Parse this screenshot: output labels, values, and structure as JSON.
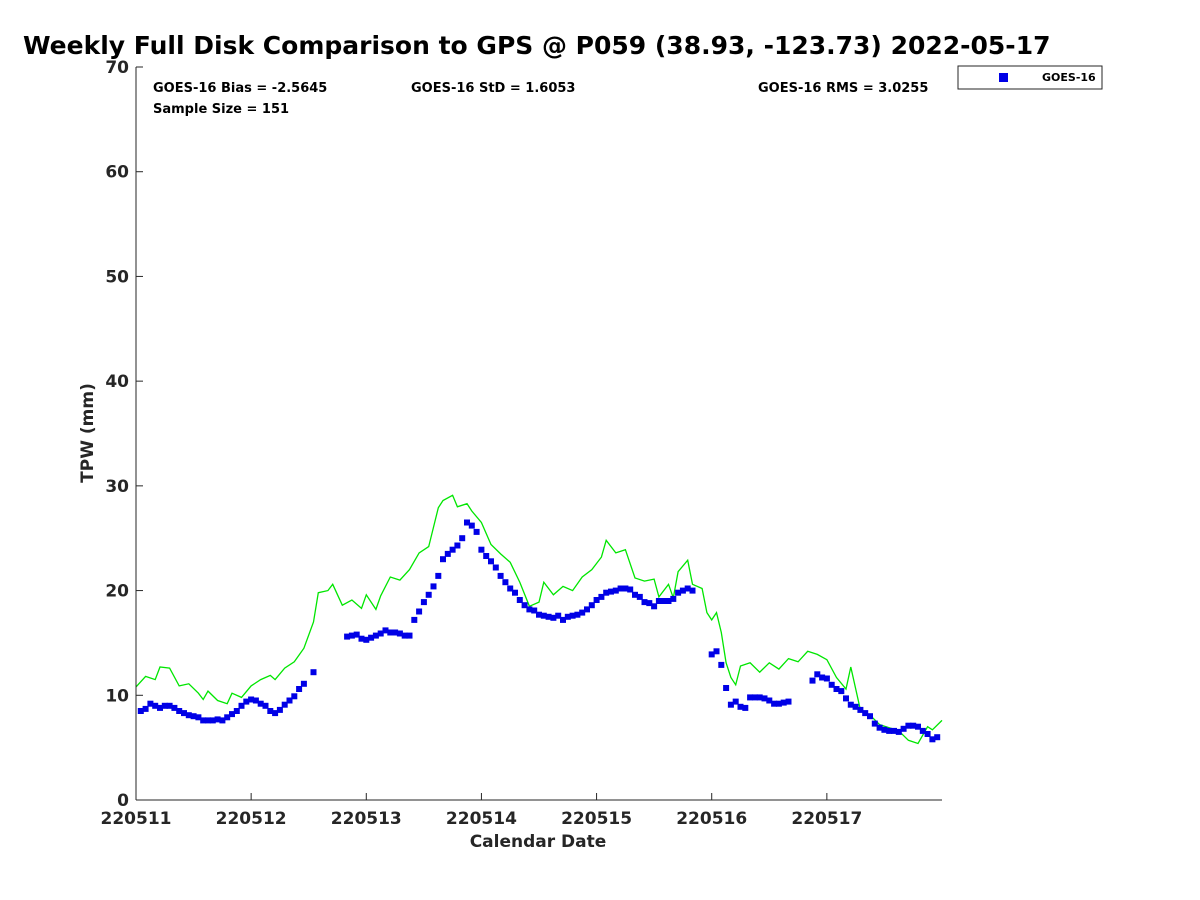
{
  "chart_data": {
    "type": "scatter",
    "title": "Weekly Full Disk Comparison to GPS @ P059 (38.93, -123.73) 2022-05-17",
    "xlabel": "Calendar Date",
    "ylabel": "TPW (mm)",
    "ylim": [
      0,
      70
    ],
    "xlim": [
      "2022-05-11 00:00",
      "2022-05-18 00:00"
    ],
    "x_ticks": [
      "2022-05-11",
      "2022-05-12",
      "2022-05-13",
      "2022-05-14",
      "2022-05-15",
      "2022-05-16",
      "2022-05-17"
    ],
    "x_tick_labels": [
      "220511",
      "220512",
      "220513",
      "220514",
      "220515",
      "220516",
      "220517"
    ],
    "y_ticks": [
      0,
      10,
      20,
      30,
      40,
      50,
      60,
      70
    ],
    "grid": false,
    "legend": {
      "position": "top-right",
      "entries": [
        "GOES-16"
      ]
    },
    "stats": {
      "bias": "GOES-16 Bias = -2.5645",
      "std": "GOES-16 StD = 1.6053",
      "rms": "GOES-16 RMS = 3.0255",
      "sample_size": "Sample Size = 151"
    },
    "series": [
      {
        "name": "GOES-16",
        "marker": "square",
        "color": "#0000e6",
        "points": [
          [
            "2022-05-11 01:00",
            8.5
          ],
          [
            "2022-05-11 02:00",
            8.7
          ],
          [
            "2022-05-11 03:00",
            9.2
          ],
          [
            "2022-05-11 04:00",
            9.0
          ],
          [
            "2022-05-11 05:00",
            8.8
          ],
          [
            "2022-05-11 06:00",
            9.0
          ],
          [
            "2022-05-11 07:00",
            9.0
          ],
          [
            "2022-05-11 08:00",
            8.8
          ],
          [
            "2022-05-11 09:00",
            8.5
          ],
          [
            "2022-05-11 10:00",
            8.3
          ],
          [
            "2022-05-11 11:00",
            8.1
          ],
          [
            "2022-05-11 12:00",
            8.0
          ],
          [
            "2022-05-11 13:00",
            7.9
          ],
          [
            "2022-05-11 14:00",
            7.6
          ],
          [
            "2022-05-11 15:00",
            7.6
          ],
          [
            "2022-05-11 16:00",
            7.6
          ],
          [
            "2022-05-11 17:00",
            7.7
          ],
          [
            "2022-05-11 18:00",
            7.6
          ],
          [
            "2022-05-11 19:00",
            7.9
          ],
          [
            "2022-05-11 20:00",
            8.2
          ],
          [
            "2022-05-11 21:00",
            8.5
          ],
          [
            "2022-05-11 22:00",
            9.0
          ],
          [
            "2022-05-11 23:00",
            9.4
          ],
          [
            "2022-05-12 00:00",
            9.6
          ],
          [
            "2022-05-12 01:00",
            9.5
          ],
          [
            "2022-05-12 02:00",
            9.2
          ],
          [
            "2022-05-12 03:00",
            9.0
          ],
          [
            "2022-05-12 04:00",
            8.5
          ],
          [
            "2022-05-12 05:00",
            8.3
          ],
          [
            "2022-05-12 06:00",
            8.6
          ],
          [
            "2022-05-12 07:00",
            9.1
          ],
          [
            "2022-05-12 08:00",
            9.5
          ],
          [
            "2022-05-12 09:00",
            9.9
          ],
          [
            "2022-05-12 10:00",
            10.6
          ],
          [
            "2022-05-12 11:00",
            11.1
          ],
          [
            "2022-05-12 13:00",
            12.2
          ],
          [
            "2022-05-12 20:00",
            15.6
          ],
          [
            "2022-05-12 21:00",
            15.7
          ],
          [
            "2022-05-12 22:00",
            15.8
          ],
          [
            "2022-05-12 23:00",
            15.4
          ],
          [
            "2022-05-13 00:00",
            15.3
          ],
          [
            "2022-05-13 01:00",
            15.5
          ],
          [
            "2022-05-13 02:00",
            15.7
          ],
          [
            "2022-05-13 03:00",
            15.9
          ],
          [
            "2022-05-13 04:00",
            16.2
          ],
          [
            "2022-05-13 05:00",
            16.0
          ],
          [
            "2022-05-13 06:00",
            16.0
          ],
          [
            "2022-05-13 07:00",
            15.9
          ],
          [
            "2022-05-13 08:00",
            15.7
          ],
          [
            "2022-05-13 09:00",
            15.7
          ],
          [
            "2022-05-13 10:00",
            17.2
          ],
          [
            "2022-05-13 11:00",
            18.0
          ],
          [
            "2022-05-13 12:00",
            18.9
          ],
          [
            "2022-05-13 13:00",
            19.6
          ],
          [
            "2022-05-13 14:00",
            20.4
          ],
          [
            "2022-05-13 15:00",
            21.4
          ],
          [
            "2022-05-13 16:00",
            23.0
          ],
          [
            "2022-05-13 17:00",
            23.5
          ],
          [
            "2022-05-13 18:00",
            23.9
          ],
          [
            "2022-05-13 19:00",
            24.3
          ],
          [
            "2022-05-13 20:00",
            25.0
          ],
          [
            "2022-05-13 21:00",
            26.5
          ],
          [
            "2022-05-13 22:00",
            26.2
          ],
          [
            "2022-05-13 23:00",
            25.6
          ],
          [
            "2022-05-14 00:00",
            23.9
          ],
          [
            "2022-05-14 01:00",
            23.3
          ],
          [
            "2022-05-14 02:00",
            22.8
          ],
          [
            "2022-05-14 03:00",
            22.2
          ],
          [
            "2022-05-14 04:00",
            21.4
          ],
          [
            "2022-05-14 05:00",
            20.8
          ],
          [
            "2022-05-14 06:00",
            20.2
          ],
          [
            "2022-05-14 07:00",
            19.8
          ],
          [
            "2022-05-14 08:00",
            19.1
          ],
          [
            "2022-05-14 09:00",
            18.6
          ],
          [
            "2022-05-14 10:00",
            18.2
          ],
          [
            "2022-05-14 11:00",
            18.1
          ],
          [
            "2022-05-14 12:00",
            17.7
          ],
          [
            "2022-05-14 13:00",
            17.6
          ],
          [
            "2022-05-14 14:00",
            17.5
          ],
          [
            "2022-05-14 15:00",
            17.4
          ],
          [
            "2022-05-14 16:00",
            17.6
          ],
          [
            "2022-05-14 17:00",
            17.2
          ],
          [
            "2022-05-14 18:00",
            17.5
          ],
          [
            "2022-05-14 19:00",
            17.6
          ],
          [
            "2022-05-14 20:00",
            17.7
          ],
          [
            "2022-05-14 21:00",
            17.9
          ],
          [
            "2022-05-14 22:00",
            18.2
          ],
          [
            "2022-05-14 23:00",
            18.6
          ],
          [
            "2022-05-15 00:00",
            19.1
          ],
          [
            "2022-05-15 01:00",
            19.4
          ],
          [
            "2022-05-15 02:00",
            19.8
          ],
          [
            "2022-05-15 03:00",
            19.9
          ],
          [
            "2022-05-15 04:00",
            20.0
          ],
          [
            "2022-05-15 05:00",
            20.2
          ],
          [
            "2022-05-15 06:00",
            20.2
          ],
          [
            "2022-05-15 07:00",
            20.1
          ],
          [
            "2022-05-15 08:00",
            19.6
          ],
          [
            "2022-05-15 09:00",
            19.4
          ],
          [
            "2022-05-15 10:00",
            18.9
          ],
          [
            "2022-05-15 11:00",
            18.8
          ],
          [
            "2022-05-15 12:00",
            18.5
          ],
          [
            "2022-05-15 13:00",
            19.0
          ],
          [
            "2022-05-15 14:00",
            19.0
          ],
          [
            "2022-05-15 15:00",
            19.0
          ],
          [
            "2022-05-15 16:00",
            19.2
          ],
          [
            "2022-05-15 17:00",
            19.8
          ],
          [
            "2022-05-15 18:00",
            20.0
          ],
          [
            "2022-05-15 19:00",
            20.2
          ],
          [
            "2022-05-15 20:00",
            20.0
          ],
          [
            "2022-05-16 00:00",
            13.9
          ],
          [
            "2022-05-16 01:00",
            14.2
          ],
          [
            "2022-05-16 02:00",
            12.9
          ],
          [
            "2022-05-16 03:00",
            10.7
          ],
          [
            "2022-05-16 04:00",
            9.1
          ],
          [
            "2022-05-16 05:00",
            9.4
          ],
          [
            "2022-05-16 06:00",
            8.9
          ],
          [
            "2022-05-16 07:00",
            8.8
          ],
          [
            "2022-05-16 08:00",
            9.8
          ],
          [
            "2022-05-16 09:00",
            9.8
          ],
          [
            "2022-05-16 10:00",
            9.8
          ],
          [
            "2022-05-16 11:00",
            9.7
          ],
          [
            "2022-05-16 12:00",
            9.5
          ],
          [
            "2022-05-16 13:00",
            9.2
          ],
          [
            "2022-05-16 14:00",
            9.2
          ],
          [
            "2022-05-16 15:00",
            9.3
          ],
          [
            "2022-05-16 16:00",
            9.4
          ],
          [
            "2022-05-16 21:00",
            11.4
          ],
          [
            "2022-05-16 22:00",
            12.0
          ],
          [
            "2022-05-16 23:00",
            11.7
          ],
          [
            "2022-05-17 00:00",
            11.6
          ],
          [
            "2022-05-17 01:00",
            11.0
          ],
          [
            "2022-05-17 02:00",
            10.6
          ],
          [
            "2022-05-17 03:00",
            10.4
          ],
          [
            "2022-05-17 04:00",
            9.7
          ],
          [
            "2022-05-17 05:00",
            9.1
          ],
          [
            "2022-05-17 06:00",
            8.9
          ],
          [
            "2022-05-17 07:00",
            8.6
          ],
          [
            "2022-05-17 08:00",
            8.3
          ],
          [
            "2022-05-17 09:00",
            8.0
          ],
          [
            "2022-05-17 10:00",
            7.3
          ],
          [
            "2022-05-17 11:00",
            6.9
          ],
          [
            "2022-05-17 12:00",
            6.7
          ],
          [
            "2022-05-17 13:00",
            6.6
          ],
          [
            "2022-05-17 14:00",
            6.6
          ],
          [
            "2022-05-17 15:00",
            6.5
          ],
          [
            "2022-05-17 16:00",
            6.8
          ],
          [
            "2022-05-17 17:00",
            7.1
          ],
          [
            "2022-05-17 18:00",
            7.1
          ],
          [
            "2022-05-17 19:00",
            7.0
          ],
          [
            "2022-05-17 20:00",
            6.6
          ],
          [
            "2022-05-17 21:00",
            6.3
          ],
          [
            "2022-05-17 22:00",
            5.8
          ],
          [
            "2022-05-17 23:00",
            6.0
          ]
        ]
      },
      {
        "color": "#00e600",
        "line": true,
        "points": [
          [
            "2022-05-11 00:00",
            10.8
          ],
          [
            "2022-05-11 02:00",
            11.8
          ],
          [
            "2022-05-11 04:00",
            11.5
          ],
          [
            "2022-05-11 05:00",
            12.7
          ],
          [
            "2022-05-11 07:00",
            12.6
          ],
          [
            "2022-05-11 09:00",
            10.9
          ],
          [
            "2022-05-11 11:00",
            11.1
          ],
          [
            "2022-05-11 13:00",
            10.2
          ],
          [
            "2022-05-11 14:00",
            9.6
          ],
          [
            "2022-05-11 15:00",
            10.4
          ],
          [
            "2022-05-11 17:00",
            9.5
          ],
          [
            "2022-05-11 19:00",
            9.2
          ],
          [
            "2022-05-11 20:00",
            10.2
          ],
          [
            "2022-05-11 22:00",
            9.8
          ],
          [
            "2022-05-12 00:00",
            10.9
          ],
          [
            "2022-05-12 02:00",
            11.5
          ],
          [
            "2022-05-12 04:00",
            11.9
          ],
          [
            "2022-05-12 05:00",
            11.5
          ],
          [
            "2022-05-12 07:00",
            12.6
          ],
          [
            "2022-05-12 09:00",
            13.2
          ],
          [
            "2022-05-12 11:00",
            14.5
          ],
          [
            "2022-05-12 13:00",
            17.0
          ],
          [
            "2022-05-12 14:00",
            19.8
          ],
          [
            "2022-05-12 16:00",
            20.0
          ],
          [
            "2022-05-12 17:00",
            20.6
          ],
          [
            "2022-05-12 19:00",
            18.6
          ],
          [
            "2022-05-12 21:00",
            19.1
          ],
          [
            "2022-05-12 23:00",
            18.3
          ],
          [
            "2022-05-13 00:00",
            19.6
          ],
          [
            "2022-05-13 02:00",
            18.2
          ],
          [
            "2022-05-13 03:00",
            19.5
          ],
          [
            "2022-05-13 05:00",
            21.3
          ],
          [
            "2022-05-13 07:00",
            21.0
          ],
          [
            "2022-05-13 09:00",
            22.0
          ],
          [
            "2022-05-13 11:00",
            23.6
          ],
          [
            "2022-05-13 13:00",
            24.2
          ],
          [
            "2022-05-13 15:00",
            27.9
          ],
          [
            "2022-05-13 16:00",
            28.6
          ],
          [
            "2022-05-13 18:00",
            29.1
          ],
          [
            "2022-05-13 19:00",
            28.0
          ],
          [
            "2022-05-13 21:00",
            28.3
          ],
          [
            "2022-05-13 22:00",
            27.6
          ],
          [
            "2022-05-14 00:00",
            26.5
          ],
          [
            "2022-05-14 02:00",
            24.4
          ],
          [
            "2022-05-14 04:00",
            23.5
          ],
          [
            "2022-05-14 06:00",
            22.7
          ],
          [
            "2022-05-14 08:00",
            20.8
          ],
          [
            "2022-05-14 10:00",
            18.5
          ],
          [
            "2022-05-14 12:00",
            18.9
          ],
          [
            "2022-05-14 13:00",
            20.8
          ],
          [
            "2022-05-14 15:00",
            19.6
          ],
          [
            "2022-05-14 17:00",
            20.4
          ],
          [
            "2022-05-14 19:00",
            20.0
          ],
          [
            "2022-05-14 21:00",
            21.3
          ],
          [
            "2022-05-14 23:00",
            22.0
          ],
          [
            "2022-05-15 01:00",
            23.2
          ],
          [
            "2022-05-15 02:00",
            24.8
          ],
          [
            "2022-05-15 04:00",
            23.6
          ],
          [
            "2022-05-15 06:00",
            23.9
          ],
          [
            "2022-05-15 08:00",
            21.2
          ],
          [
            "2022-05-15 10:00",
            20.9
          ],
          [
            "2022-05-15 12:00",
            21.1
          ],
          [
            "2022-05-15 13:00",
            19.4
          ],
          [
            "2022-05-15 15:00",
            20.6
          ],
          [
            "2022-05-15 16:00",
            19.3
          ],
          [
            "2022-05-15 17:00",
            21.8
          ],
          [
            "2022-05-15 19:00",
            22.9
          ],
          [
            "2022-05-15 20:00",
            20.6
          ],
          [
            "2022-05-15 22:00",
            20.2
          ],
          [
            "2022-05-15 23:00",
            17.9
          ],
          [
            "2022-05-16 00:00",
            17.2
          ],
          [
            "2022-05-16 01:00",
            17.9
          ],
          [
            "2022-05-16 02:00",
            16.0
          ],
          [
            "2022-05-16 03:00",
            13.1
          ],
          [
            "2022-05-16 04:00",
            11.7
          ],
          [
            "2022-05-16 05:00",
            11.0
          ],
          [
            "2022-05-16 06:00",
            12.8
          ],
          [
            "2022-05-16 08:00",
            13.1
          ],
          [
            "2022-05-16 10:00",
            12.2
          ],
          [
            "2022-05-16 12:00",
            13.1
          ],
          [
            "2022-05-16 14:00",
            12.5
          ],
          [
            "2022-05-16 16:00",
            13.5
          ],
          [
            "2022-05-16 18:00",
            13.2
          ],
          [
            "2022-05-16 20:00",
            14.2
          ],
          [
            "2022-05-16 22:00",
            13.9
          ],
          [
            "2022-05-17 00:00",
            13.4
          ],
          [
            "2022-05-17 02:00",
            11.7
          ],
          [
            "2022-05-17 04:00",
            10.6
          ],
          [
            "2022-05-17 05:00",
            12.7
          ],
          [
            "2022-05-17 07:00",
            8.6
          ],
          [
            "2022-05-17 09:00",
            8.1
          ],
          [
            "2022-05-17 11:00",
            7.2
          ],
          [
            "2022-05-17 13:00",
            6.9
          ],
          [
            "2022-05-17 15:00",
            6.6
          ],
          [
            "2022-05-17 17:00",
            5.7
          ],
          [
            "2022-05-17 19:00",
            5.4
          ],
          [
            "2022-05-17 21:00",
            7.0
          ],
          [
            "2022-05-17 22:00",
            6.7
          ],
          [
            "2022-05-18 00:00",
            7.6
          ]
        ]
      }
    ]
  }
}
